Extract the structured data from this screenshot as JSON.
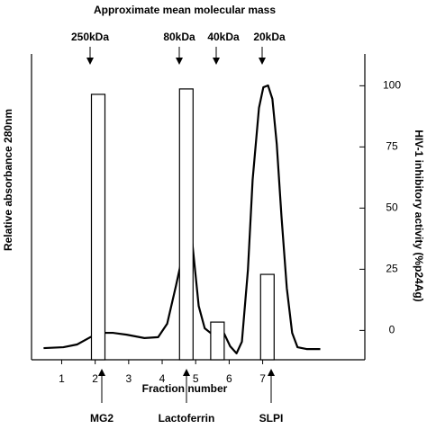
{
  "chart_data": {
    "type": "bar-line",
    "title": "Approximate mean molecular mass",
    "xlabel": "Fraction number",
    "ylabel": "Relative absorbance 280nm",
    "y2label": "HIV-1 inhibitory activity (%p24Ag)",
    "top_annotations": [
      "250kDa",
      "80kDa",
      "40kDa",
      "20kDa"
    ],
    "bottom_annotations": [
      "MG2",
      "Lactoferrin",
      "SLPI"
    ],
    "xlim": [
      0.1,
      10.05
    ],
    "xticks": [
      1,
      2,
      3,
      4,
      5,
      6,
      7
    ],
    "ylim": [
      0,
      100
    ],
    "y2lim": [
      -12,
      113
    ],
    "y2ticks": [
      0,
      25,
      50,
      75,
      100
    ],
    "series": [
      {
        "type": "line",
        "color": "#000000",
        "x": [
          0.46,
          1.05,
          1.46,
          1.86,
          2.26,
          2.53,
          2.94,
          3.47,
          3.88,
          4.15,
          4.41,
          4.68,
          4.82,
          4.9,
          5.09,
          5.27,
          5.44,
          5.62,
          5.84,
          6.03,
          6.22,
          6.38,
          6.56,
          6.7,
          6.89,
          7.02,
          7.16,
          7.29,
          7.42,
          7.56,
          7.72,
          7.88,
          8.04,
          8.31,
          8.72
        ],
        "values": [
          3.8,
          4.1,
          5.0,
          7.4,
          8.8,
          8.8,
          8.2,
          7.1,
          7.4,
          11.8,
          24.1,
          37.6,
          41.2,
          38.2,
          17.6,
          10.3,
          8.8,
          10.0,
          8.8,
          4.4,
          2.1,
          5.9,
          29.4,
          58.8,
          82.4,
          89.1,
          89.7,
          85.3,
          70.6,
          47.1,
          23.5,
          8.8,
          4.1,
          3.5,
          3.5
        ]
      },
      {
        "type": "bar",
        "axis": "y2",
        "color": "#ffffff",
        "x": [
          2.09,
          4.72,
          5.65,
          7.14
        ],
        "values": [
          96.5,
          98.7,
          3.4,
          22.9
        ]
      }
    ]
  }
}
